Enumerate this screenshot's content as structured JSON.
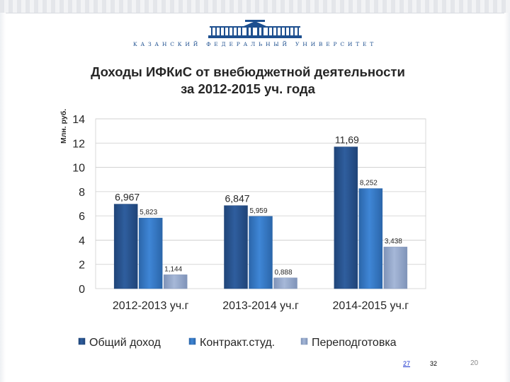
{
  "header": {
    "university": "КАЗАНСКИЙ ФЕДЕРАЛЬНЫЙ УНИВЕРСИТЕТ"
  },
  "footer": {
    "link_page": "27",
    "total_pages": "32",
    "slide_number": "20"
  },
  "colors": {
    "series": [
      "#2f5e9e",
      "#3f86d6",
      "#a6b8d8"
    ],
    "series_dark": [
      "#1f4478",
      "#2b66aa",
      "#7f93b8"
    ],
    "text": "#262626",
    "grid": "#cccccc"
  },
  "chart_data": {
    "type": "bar",
    "title_lines": [
      "Доходы ИФКиС от внебюджетной деятельности",
      "за 2012-2015 уч. года"
    ],
    "xlabel": "",
    "ylabel": "Млн. руб.",
    "ylim": [
      0,
      14
    ],
    "yticks": [
      0,
      2,
      4,
      6,
      8,
      10,
      12,
      14
    ],
    "grid": true,
    "legend_position": "bottom",
    "categories": [
      "2012-2013 уч.г",
      "2013-2014 уч.г",
      "2014-2015 уч.г"
    ],
    "series": [
      {
        "name": "Общий доход",
        "values": [
          6.967,
          6.847,
          11.69
        ],
        "labels": [
          "6,967",
          "6,847",
          "11,69"
        ]
      },
      {
        "name": "Контракт.студ.",
        "values": [
          5.823,
          5.959,
          8.252
        ],
        "labels": [
          "5,823",
          "5,959",
          "8,252"
        ]
      },
      {
        "name": "Переподготовка",
        "values": [
          1.144,
          0.888,
          3.438
        ],
        "labels": [
          "1,144",
          "0,888",
          "3,438"
        ]
      }
    ]
  }
}
